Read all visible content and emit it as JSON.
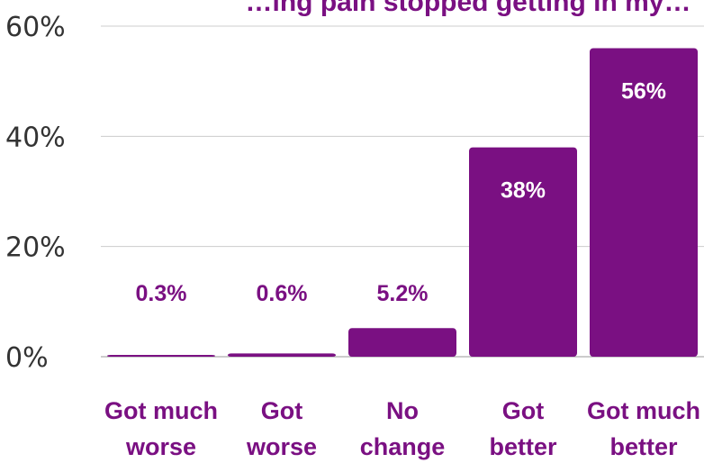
{
  "chart_data": {
    "type": "bar",
    "title": "…ing pain stopped getting in my…",
    "categories": [
      [
        "Got much",
        "worse"
      ],
      [
        "Got",
        "worse"
      ],
      [
        "No",
        "change"
      ],
      [
        "Got",
        "better"
      ],
      [
        "Got much",
        "better"
      ]
    ],
    "values": [
      0.3,
      0.6,
      5.2,
      38,
      56
    ],
    "data_labels": [
      "0.3%",
      "0.6%",
      "5.2%",
      "38%",
      "56%"
    ],
    "yticks": [
      "0%",
      "20%",
      "40%",
      "60%"
    ],
    "ytick_values": [
      0,
      20,
      40,
      60
    ],
    "ylim": [
      0,
      60
    ],
    "grid": true,
    "colors": {
      "bar": "#7a1082",
      "label_outside": "#7a1082",
      "label_inside": "#ffffff",
      "category": "#7a1082",
      "grid": "#cccccc",
      "tick": "#333333"
    }
  }
}
